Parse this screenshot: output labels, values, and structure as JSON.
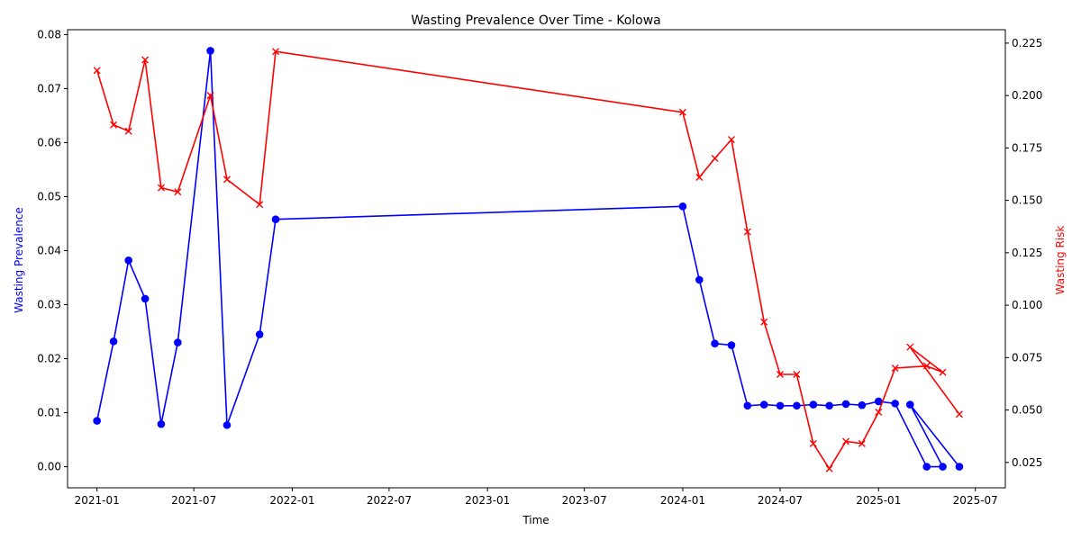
{
  "chart_data": {
    "type": "line",
    "title": "Wasting Prevalence Over Time - Kolowa",
    "xlabel": "Time",
    "ylabel_left": "Wasting Prevalence",
    "ylabel_right": "Wasting Risk",
    "xlim": [
      "2020-11-07",
      "2025-08-26"
    ],
    "ylim_left": [
      -0.0039,
      0.0809
    ],
    "ylim_right": [
      0.0129,
      0.2314
    ],
    "x_ticks": [
      "2021-01",
      "2021-07",
      "2022-01",
      "2022-07",
      "2023-01",
      "2023-07",
      "2024-01",
      "2024-07",
      "2025-01",
      "2025-07"
    ],
    "y_ticks_left": [
      0.0,
      0.01,
      0.02,
      0.03,
      0.04,
      0.05,
      0.06,
      0.07,
      0.08
    ],
    "y_tick_labels_left": [
      "0.00",
      "0.01",
      "0.02",
      "0.03",
      "0.04",
      "0.05",
      "0.06",
      "0.07",
      "0.08"
    ],
    "y_ticks_right": [
      0.025,
      0.05,
      0.075,
      0.1,
      0.125,
      0.15,
      0.175,
      0.2,
      0.225
    ],
    "y_tick_labels_right": [
      "0.025",
      "0.050",
      "0.075",
      "0.100",
      "0.125",
      "0.150",
      "0.175",
      "0.200",
      "0.225"
    ],
    "grid": false,
    "series": [
      {
        "axis": "left",
        "color": "#0000ff",
        "marker": "circle",
        "points": [
          [
            "2021-01-01",
            0.0085
          ],
          [
            "2021-02-01",
            0.0232
          ],
          [
            "2021-03-01",
            0.0382
          ],
          [
            "2021-04-01",
            0.0311
          ],
          [
            "2021-05-01",
            0.0079
          ],
          [
            "2021-06-01",
            0.023
          ],
          [
            "2021-08-01",
            0.077
          ],
          [
            "2021-09-01",
            0.0077
          ],
          [
            "2021-11-01",
            0.0245
          ],
          [
            "2021-12-01",
            0.0458
          ],
          [
            "2024-01-01",
            0.0482
          ],
          [
            "2024-02-01",
            0.0346
          ],
          [
            "2024-03-01",
            0.0228
          ],
          [
            "2024-04-01",
            0.0225
          ],
          [
            "2024-05-01",
            0.0113
          ],
          [
            "2024-06-01",
            0.0115
          ],
          [
            "2024-07-01",
            0.0113
          ],
          [
            "2024-08-01",
            0.0113
          ],
          [
            "2024-09-01",
            0.0115
          ],
          [
            "2024-10-01",
            0.0113
          ],
          [
            "2024-11-01",
            0.0116
          ],
          [
            "2024-12-01",
            0.0114
          ],
          [
            "2025-01-01",
            0.0121
          ],
          [
            "2025-02-01",
            0.0117
          ],
          [
            "2025-04-01",
            0.0
          ],
          [
            "2025-05-01",
            0.0
          ],
          [
            "2025-03-01",
            0.0115
          ],
          [
            "2025-06-01",
            0.0
          ]
        ]
      },
      {
        "axis": "right",
        "color": "#ff0000",
        "marker": "x",
        "points": [
          [
            "2021-01-01",
            0.212
          ],
          [
            "2021-02-01",
            0.186
          ],
          [
            "2021-03-01",
            0.183
          ],
          [
            "2021-04-01",
            0.217
          ],
          [
            "2021-05-01",
            0.156
          ],
          [
            "2021-06-01",
            0.154
          ],
          [
            "2021-08-01",
            0.2
          ],
          [
            "2021-09-01",
            0.16
          ],
          [
            "2021-11-01",
            0.148
          ],
          [
            "2021-12-01",
            0.221
          ],
          [
            "2024-01-01",
            0.192
          ],
          [
            "2024-02-01",
            0.161
          ],
          [
            "2024-03-01",
            0.17
          ],
          [
            "2024-04-01",
            0.179
          ],
          [
            "2024-05-01",
            0.135
          ],
          [
            "2024-06-01",
            0.092
          ],
          [
            "2024-07-01",
            0.067
          ],
          [
            "2024-08-01",
            0.067
          ],
          [
            "2024-09-01",
            0.034
          ],
          [
            "2024-10-01",
            0.022
          ],
          [
            "2024-11-01",
            0.035
          ],
          [
            "2024-12-01",
            0.034
          ],
          [
            "2025-01-01",
            0.049
          ],
          [
            "2025-02-01",
            0.07
          ],
          [
            "2025-04-01",
            0.071
          ],
          [
            "2025-05-01",
            0.068
          ],
          [
            "2025-03-01",
            0.08
          ],
          [
            "2025-06-01",
            0.048
          ]
        ]
      }
    ]
  }
}
